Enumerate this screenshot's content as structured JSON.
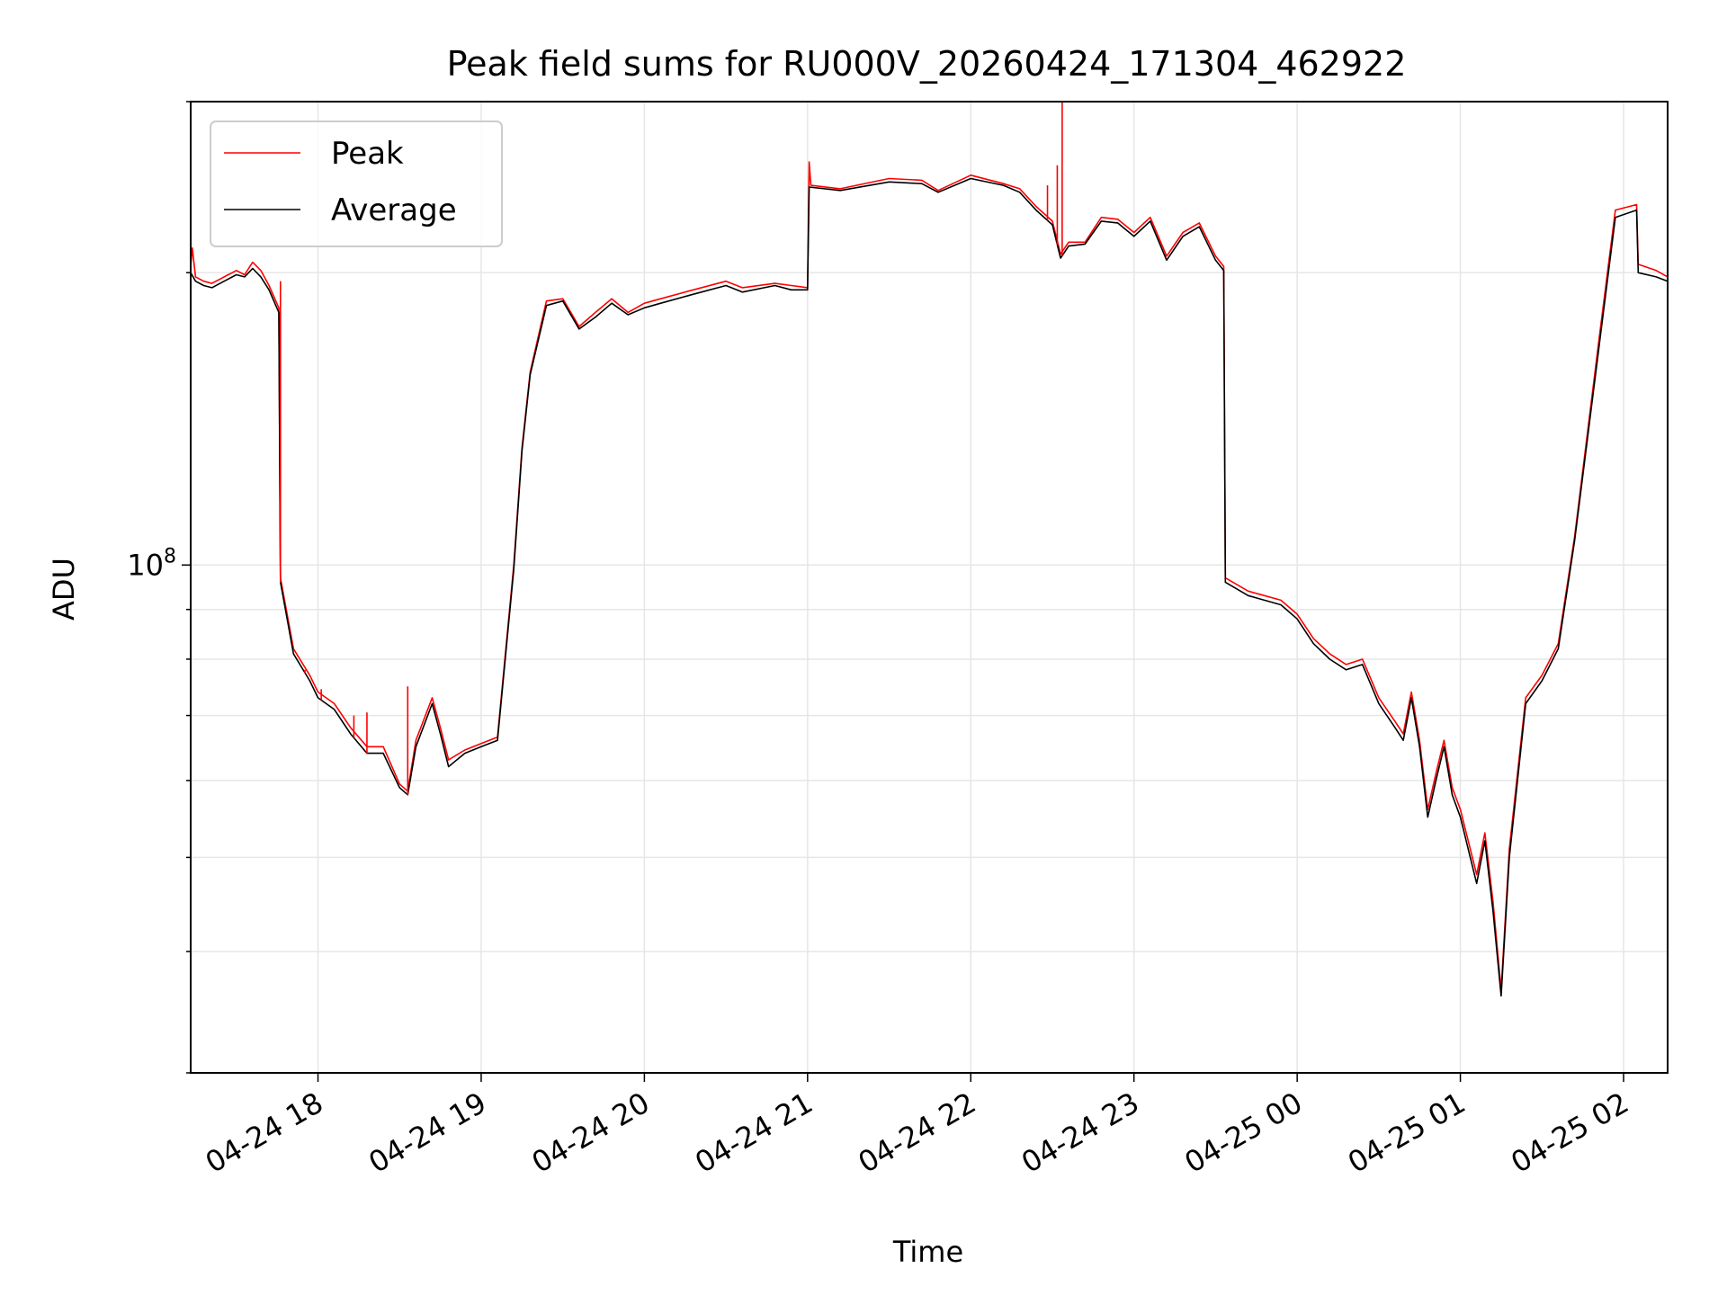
{
  "chart_data": {
    "type": "line",
    "title": "Peak field sums for RU000V_20260424_171304_462922",
    "xlabel": "Time",
    "ylabel": "ADU",
    "x_tick_labels": [
      "04-24 18",
      "04-24 19",
      "04-24 20",
      "04-24 21",
      "04-24 22",
      "04-24 23",
      "04-25 00",
      "04-25 01",
      "04-25 02"
    ],
    "x_ticks_hours": [
      18,
      19,
      20,
      21,
      22,
      23,
      24,
      25,
      26
    ],
    "x_range_hours": [
      17.22,
      26.27
    ],
    "y_scale": "log",
    "y_major_tick": {
      "value": 100000000,
      "base": "10",
      "exp": "8"
    },
    "ylim": [
      30000000,
      300000000
    ],
    "grid": true,
    "legend": {
      "placement": "top-left",
      "entries": [
        "Peak",
        "Average"
      ]
    },
    "colors": {
      "peak": "#ff0000",
      "average": "#000000",
      "grid": "#e6e6e6"
    },
    "series": [
      {
        "name": "Average",
        "hours": [
          17.22,
          17.25,
          17.3,
          17.35,
          17.4,
          17.45,
          17.5,
          17.55,
          17.6,
          17.65,
          17.7,
          17.76,
          17.77,
          17.85,
          17.95,
          18.0,
          18.1,
          18.2,
          18.3,
          18.4,
          18.5,
          18.55,
          18.6,
          18.7,
          18.75,
          18.8,
          18.9,
          19.0,
          19.1,
          19.2,
          19.25,
          19.3,
          19.4,
          19.5,
          19.6,
          19.7,
          19.8,
          19.9,
          20.0,
          20.1,
          20.3,
          20.5,
          20.6,
          20.8,
          20.9,
          21.0,
          21.01,
          21.2,
          21.5,
          21.7,
          21.8,
          22.0,
          22.2,
          22.3,
          22.4,
          22.5,
          22.55,
          22.6,
          22.7,
          22.8,
          22.9,
          23.0,
          23.1,
          23.2,
          23.3,
          23.4,
          23.5,
          23.55,
          23.56,
          23.7,
          23.9,
          24.0,
          24.1,
          24.2,
          24.3,
          24.4,
          24.5,
          24.6,
          24.65,
          24.7,
          24.75,
          24.8,
          24.85,
          24.9,
          24.95,
          25.0,
          25.1,
          25.15,
          25.2,
          25.25,
          25.3,
          25.4,
          25.5,
          25.6,
          25.7,
          25.85,
          25.95,
          26.08,
          26.09,
          26.2,
          26.27
        ],
        "values": [
          200000000,
          196000000,
          194000000,
          193000000,
          195000000,
          197000000,
          199000000,
          198000000,
          202000000,
          198000000,
          192000000,
          182000000,
          96000000,
          81000000,
          76000000,
          73000000,
          71000000,
          67000000,
          64000000,
          64000000,
          59000000,
          58000000,
          65000000,
          72000000,
          67000000,
          62000000,
          64000000,
          65000000,
          66000000,
          99000000,
          131000000,
          157000000,
          185000000,
          187000000,
          175000000,
          180000000,
          186000000,
          181000000,
          184000000,
          186000000,
          190000000,
          194000000,
          191000000,
          194000000,
          192000000,
          192000000,
          245000000,
          243000000,
          248000000,
          247000000,
          242000000,
          250000000,
          246000000,
          242000000,
          232000000,
          224000000,
          207000000,
          213000000,
          214000000,
          226000000,
          225000000,
          218000000,
          226000000,
          206000000,
          218000000,
          223000000,
          206000000,
          201000000,
          96000000,
          93000000,
          91000000,
          88000000,
          83000000,
          80000000,
          78000000,
          79000000,
          72000000,
          68000000,
          66000000,
          73000000,
          65000000,
          55000000,
          60000000,
          65000000,
          58000000,
          55000000,
          47000000,
          52000000,
          44000000,
          36000000,
          50000000,
          72000000,
          76000000,
          82000000,
          106000000,
          168000000,
          228000000,
          232000000,
          200000000,
          198000000,
          196000000
        ]
      },
      {
        "name": "Peak",
        "hours": [
          17.22,
          17.23,
          17.25,
          17.3,
          17.35,
          17.4,
          17.45,
          17.5,
          17.55,
          17.6,
          17.65,
          17.7,
          17.76,
          17.77,
          17.85,
          17.95,
          18.0,
          18.1,
          18.2,
          18.3,
          18.4,
          18.5,
          18.55,
          18.6,
          18.7,
          18.75,
          18.8,
          18.9,
          19.0,
          19.1,
          19.2,
          19.25,
          19.3,
          19.4,
          19.5,
          19.6,
          19.7,
          19.8,
          19.9,
          20.0,
          20.1,
          20.3,
          20.5,
          20.6,
          20.8,
          20.9,
          21.0,
          21.01,
          21.02,
          21.2,
          21.5,
          21.7,
          21.8,
          22.0,
          22.2,
          22.3,
          22.4,
          22.5,
          22.55,
          22.6,
          22.7,
          22.8,
          22.9,
          23.0,
          23.1,
          23.2,
          23.3,
          23.4,
          23.5,
          23.55,
          23.56,
          23.7,
          23.9,
          24.0,
          24.1,
          24.2,
          24.3,
          24.4,
          24.5,
          24.6,
          24.65,
          24.7,
          24.75,
          24.8,
          24.85,
          24.9,
          24.95,
          25.0,
          25.1,
          25.15,
          25.2,
          25.25,
          25.3,
          25.4,
          25.5,
          25.6,
          25.7,
          25.85,
          25.95,
          26.08,
          26.09,
          26.2,
          26.27
        ],
        "values": [
          203000000,
          212000000,
          198000000,
          196000000,
          195000000,
          197000000,
          199000000,
          201000000,
          199000000,
          205000000,
          201000000,
          194000000,
          184000000,
          97000000,
          82000000,
          77000000,
          74000000,
          72000000,
          68000000,
          65000000,
          65000000,
          59500000,
          58500000,
          66000000,
          73000000,
          68000000,
          63000000,
          64500000,
          65500000,
          66500000,
          100000000,
          132000000,
          158000000,
          187000000,
          188000000,
          176000000,
          182000000,
          188000000,
          182000000,
          186000000,
          188000000,
          192000000,
          196000000,
          193000000,
          195000000,
          194000000,
          193000000,
          260000000,
          246000000,
          244000000,
          250000000,
          249000000,
          243000000,
          252000000,
          247000000,
          244000000,
          234000000,
          226000000,
          209000000,
          215000000,
          215000000,
          228000000,
          227000000,
          220000000,
          228000000,
          208000000,
          220000000,
          225000000,
          208000000,
          203000000,
          97000000,
          94000000,
          92000000,
          89000000,
          84000000,
          81000000,
          79000000,
          80000000,
          73000000,
          69000000,
          67000000,
          74000000,
          66000000,
          56000000,
          61000000,
          66000000,
          59000000,
          56000000,
          48000000,
          53000000,
          45000000,
          36500000,
          51000000,
          73000000,
          77000000,
          83000000,
          107000000,
          171000000,
          232000000,
          235000000,
          204000000,
          201000000,
          198000000
        ]
      }
    ],
    "peak_spikes": [
      {
        "hour": 17.77,
        "value": 196000000
      },
      {
        "hour": 17.92,
        "value": 78000000
      },
      {
        "hour": 18.02,
        "value": 74500000
      },
      {
        "hour": 18.22,
        "value": 70000000
      },
      {
        "hour": 18.3,
        "value": 70500000
      },
      {
        "hour": 18.55,
        "value": 75000000
      },
      {
        "hour": 22.47,
        "value": 246000000
      },
      {
        "hour": 22.53,
        "value": 258000000
      },
      {
        "hour": 22.56,
        "value": 300000000
      }
    ]
  }
}
